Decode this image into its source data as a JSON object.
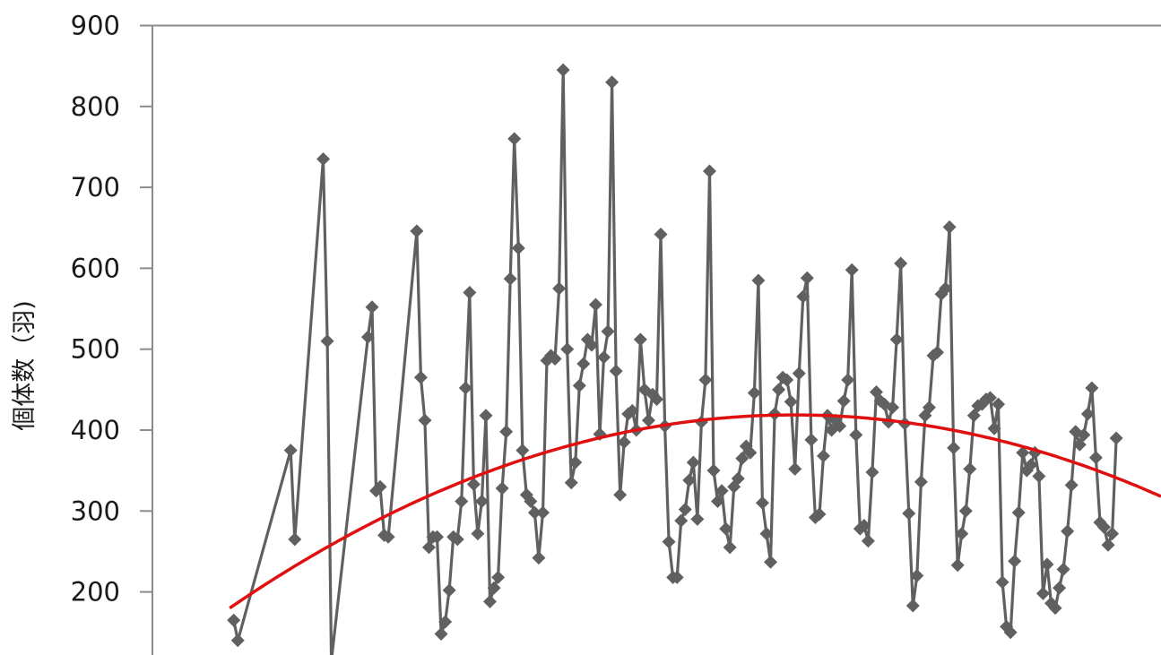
{
  "chart_data": {
    "type": "line",
    "title": "",
    "xlabel": "",
    "ylabel": "個体数（羽)",
    "yticks": [
      "200",
      "300",
      "400",
      "500",
      "600",
      "700",
      "800",
      "900"
    ],
    "ylim": [
      120,
      900
    ],
    "xlim": [
      0,
      248
    ],
    "grid": false,
    "series": [
      {
        "style": "line-markers",
        "color": "#606060",
        "marker": "diamond",
        "points": [
          [
            20,
            165
          ],
          [
            21,
            140
          ],
          [
            34,
            375
          ],
          [
            35,
            265
          ],
          [
            42,
            735
          ],
          [
            43,
            510
          ],
          [
            44,
            115
          ],
          [
            53,
            515
          ],
          [
            54,
            552
          ],
          [
            55,
            325
          ],
          [
            56,
            330
          ],
          [
            57,
            270
          ],
          [
            58,
            268
          ],
          [
            65,
            646
          ],
          [
            66,
            465
          ],
          [
            67,
            412
          ],
          [
            68,
            255
          ],
          [
            69,
            268
          ],
          [
            70,
            268
          ],
          [
            71,
            148
          ],
          [
            72,
            163
          ],
          [
            73,
            202
          ],
          [
            74,
            268
          ],
          [
            75,
            265
          ],
          [
            76,
            312
          ],
          [
            77,
            452
          ],
          [
            78,
            570
          ],
          [
            79,
            333
          ],
          [
            80,
            272
          ],
          [
            81,
            312
          ],
          [
            82,
            418
          ],
          [
            83,
            188
          ],
          [
            84,
            205
          ],
          [
            85,
            218
          ],
          [
            86,
            328
          ],
          [
            87,
            398
          ],
          [
            88,
            587
          ],
          [
            89,
            760
          ],
          [
            90,
            625
          ],
          [
            91,
            375
          ],
          [
            92,
            320
          ],
          [
            93,
            312
          ],
          [
            94,
            298
          ],
          [
            95,
            242
          ],
          [
            96,
            298
          ],
          [
            97,
            486
          ],
          [
            98,
            492
          ],
          [
            99,
            488
          ],
          [
            100,
            575
          ],
          [
            101,
            845
          ],
          [
            102,
            500
          ],
          [
            103,
            335
          ],
          [
            104,
            360
          ],
          [
            105,
            455
          ],
          [
            106,
            482
          ],
          [
            107,
            512
          ],
          [
            108,
            505
          ],
          [
            109,
            555
          ],
          [
            110,
            395
          ],
          [
            111,
            490
          ],
          [
            112,
            522
          ],
          [
            113,
            830
          ],
          [
            114,
            473
          ],
          [
            115,
            320
          ],
          [
            116,
            385
          ],
          [
            117,
            420
          ],
          [
            118,
            424
          ],
          [
            119,
            400
          ],
          [
            120,
            512
          ],
          [
            121,
            450
          ],
          [
            122,
            412
          ],
          [
            123,
            444
          ],
          [
            124,
            438
          ],
          [
            125,
            642
          ],
          [
            126,
            405
          ],
          [
            127,
            262
          ],
          [
            128,
            218
          ],
          [
            129,
            218
          ],
          [
            130,
            288
          ],
          [
            131,
            302
          ],
          [
            132,
            338
          ],
          [
            133,
            360
          ],
          [
            134,
            290
          ],
          [
            135,
            410
          ],
          [
            136,
            462
          ],
          [
            137,
            720
          ],
          [
            138,
            350
          ],
          [
            139,
            312
          ],
          [
            140,
            325
          ],
          [
            141,
            278
          ],
          [
            142,
            255
          ],
          [
            143,
            330
          ],
          [
            144,
            340
          ],
          [
            145,
            365
          ],
          [
            146,
            380
          ],
          [
            147,
            372
          ],
          [
            148,
            446
          ],
          [
            149,
            585
          ],
          [
            150,
            310
          ],
          [
            151,
            272
          ],
          [
            152,
            237
          ],
          [
            153,
            420
          ],
          [
            154,
            450
          ],
          [
            155,
            465
          ],
          [
            156,
            462
          ],
          [
            157,
            435
          ],
          [
            158,
            352
          ],
          [
            159,
            470
          ],
          [
            160,
            565
          ],
          [
            161,
            588
          ],
          [
            162,
            388
          ],
          [
            163,
            292
          ],
          [
            164,
            296
          ],
          [
            165,
            368
          ],
          [
            166,
            418
          ],
          [
            167,
            400
          ],
          [
            168,
            412
          ],
          [
            169,
            405
          ],
          [
            170,
            436
          ],
          [
            171,
            462
          ],
          [
            172,
            598
          ],
          [
            173,
            394
          ],
          [
            174,
            278
          ],
          [
            175,
            282
          ],
          [
            176,
            263
          ],
          [
            177,
            348
          ],
          [
            178,
            447
          ],
          [
            179,
            436
          ],
          [
            180,
            432
          ],
          [
            181,
            410
          ],
          [
            182,
            428
          ],
          [
            183,
            512
          ],
          [
            184,
            606
          ],
          [
            185,
            408
          ],
          [
            186,
            297
          ],
          [
            187,
            183
          ],
          [
            188,
            220
          ],
          [
            189,
            336
          ],
          [
            190,
            418
          ],
          [
            191,
            428
          ],
          [
            192,
            492
          ],
          [
            193,
            496
          ],
          [
            194,
            568
          ],
          [
            195,
            575
          ],
          [
            196,
            651
          ],
          [
            197,
            378
          ],
          [
            198,
            233
          ],
          [
            199,
            272
          ],
          [
            200,
            300
          ],
          [
            201,
            352
          ],
          [
            202,
            418
          ],
          [
            203,
            430
          ],
          [
            204,
            432
          ],
          [
            205,
            438
          ],
          [
            206,
            440
          ],
          [
            207,
            402
          ],
          [
            208,
            432
          ],
          [
            209,
            212
          ],
          [
            210,
            157
          ],
          [
            211,
            150
          ],
          [
            212,
            238
          ],
          [
            213,
            298
          ],
          [
            214,
            372
          ],
          [
            215,
            350
          ],
          [
            216,
            357
          ],
          [
            217,
            372
          ],
          [
            218,
            343
          ],
          [
            219,
            198
          ],
          [
            220,
            234
          ],
          [
            221,
            186
          ],
          [
            222,
            180
          ],
          [
            223,
            205
          ],
          [
            224,
            228
          ],
          [
            225,
            275
          ],
          [
            226,
            332
          ],
          [
            227,
            398
          ],
          [
            228,
            382
          ],
          [
            229,
            394
          ],
          [
            230,
            420
          ],
          [
            231,
            452
          ],
          [
            232,
            366
          ],
          [
            233,
            286
          ],
          [
            234,
            280
          ],
          [
            235,
            258
          ],
          [
            236,
            272
          ],
          [
            237,
            390
          ]
        ]
      },
      {
        "style": "trend-line",
        "color": "#e01010",
        "curve": "quadratic",
        "points": [
          [
            19,
            180
          ],
          [
            150,
            418
          ],
          [
            248,
            318
          ]
        ]
      }
    ]
  }
}
